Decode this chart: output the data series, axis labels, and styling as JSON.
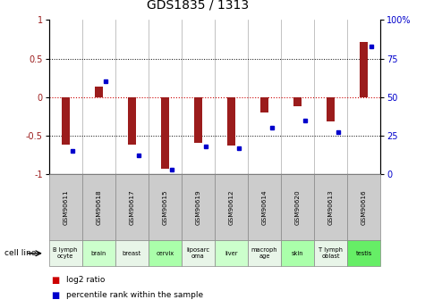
{
  "title": "GDS1835 / 1313",
  "samples": [
    "GSM90611",
    "GSM90618",
    "GSM90617",
    "GSM90615",
    "GSM90619",
    "GSM90612",
    "GSM90614",
    "GSM90620",
    "GSM90613",
    "GSM90616"
  ],
  "cell_lines": [
    "B lymph\nocyte",
    "brain",
    "breast",
    "cervix",
    "liposarc\noma",
    "liver",
    "macroph\nage",
    "skin",
    "T lymph\noblast",
    "testis"
  ],
  "log2_ratio": [
    -0.62,
    0.13,
    -0.62,
    -0.93,
    -0.6,
    -0.63,
    -0.2,
    -0.12,
    -0.32,
    0.72
  ],
  "percentile_rank": [
    15,
    60,
    12,
    3,
    18,
    17,
    30,
    35,
    27,
    83
  ],
  "ylim": [
    -1,
    1
  ],
  "y2lim": [
    0,
    100
  ],
  "yticks": [
    -1,
    -0.5,
    0,
    0.5,
    1
  ],
  "y2ticks": [
    0,
    25,
    50,
    75,
    100
  ],
  "bar_color": "#9b1c1c",
  "dot_color": "#0000cc",
  "plot_bg": "#ffffff",
  "sample_bg": "#cccccc",
  "zero_line_color": "#cc0000",
  "legend_log2_color": "#cc0000",
  "legend_pct_color": "#0000cc",
  "cell_line_colors": [
    "#e8f5e8",
    "#ccffcc",
    "#e8f5e8",
    "#aaffaa",
    "#e8f5e8",
    "#ccffcc",
    "#e8f5e8",
    "#aaffaa",
    "#e8f5e8",
    "#66ee66"
  ]
}
